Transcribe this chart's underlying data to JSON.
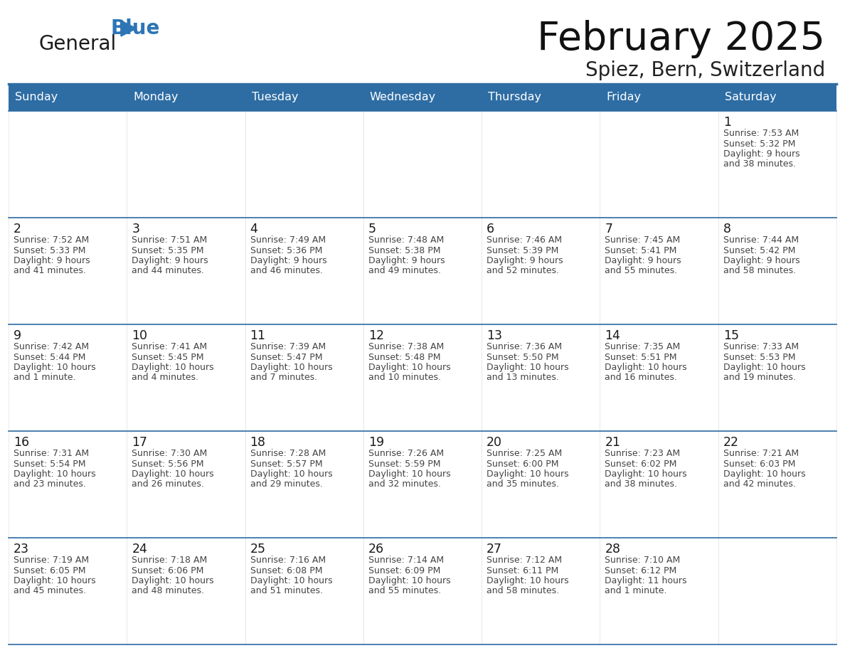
{
  "title": "February 2025",
  "subtitle": "Spiez, Bern, Switzerland",
  "header_bg": "#2E6DA4",
  "header_text": "#FFFFFF",
  "cell_bg": "#FFFFFF",
  "line_color": "#2E6DA4",
  "text_color": "#333333",
  "days_of_week": [
    "Sunday",
    "Monday",
    "Tuesday",
    "Wednesday",
    "Thursday",
    "Friday",
    "Saturday"
  ],
  "logo_general_color": "#1a1a1a",
  "logo_blue_color": "#2E75B6",
  "calendar_data": [
    [
      null,
      null,
      null,
      null,
      null,
      null,
      {
        "day": 1,
        "sunrise": "7:53 AM",
        "sunset": "5:32 PM",
        "daylight": "9 hours\nand 38 minutes."
      }
    ],
    [
      {
        "day": 2,
        "sunrise": "7:52 AM",
        "sunset": "5:33 PM",
        "daylight": "9 hours\nand 41 minutes."
      },
      {
        "day": 3,
        "sunrise": "7:51 AM",
        "sunset": "5:35 PM",
        "daylight": "9 hours\nand 44 minutes."
      },
      {
        "day": 4,
        "sunrise": "7:49 AM",
        "sunset": "5:36 PM",
        "daylight": "9 hours\nand 46 minutes."
      },
      {
        "day": 5,
        "sunrise": "7:48 AM",
        "sunset": "5:38 PM",
        "daylight": "9 hours\nand 49 minutes."
      },
      {
        "day": 6,
        "sunrise": "7:46 AM",
        "sunset": "5:39 PM",
        "daylight": "9 hours\nand 52 minutes."
      },
      {
        "day": 7,
        "sunrise": "7:45 AM",
        "sunset": "5:41 PM",
        "daylight": "9 hours\nand 55 minutes."
      },
      {
        "day": 8,
        "sunrise": "7:44 AM",
        "sunset": "5:42 PM",
        "daylight": "9 hours\nand 58 minutes."
      }
    ],
    [
      {
        "day": 9,
        "sunrise": "7:42 AM",
        "sunset": "5:44 PM",
        "daylight": "10 hours\nand 1 minute."
      },
      {
        "day": 10,
        "sunrise": "7:41 AM",
        "sunset": "5:45 PM",
        "daylight": "10 hours\nand 4 minutes."
      },
      {
        "day": 11,
        "sunrise": "7:39 AM",
        "sunset": "5:47 PM",
        "daylight": "10 hours\nand 7 minutes."
      },
      {
        "day": 12,
        "sunrise": "7:38 AM",
        "sunset": "5:48 PM",
        "daylight": "10 hours\nand 10 minutes."
      },
      {
        "day": 13,
        "sunrise": "7:36 AM",
        "sunset": "5:50 PM",
        "daylight": "10 hours\nand 13 minutes."
      },
      {
        "day": 14,
        "sunrise": "7:35 AM",
        "sunset": "5:51 PM",
        "daylight": "10 hours\nand 16 minutes."
      },
      {
        "day": 15,
        "sunrise": "7:33 AM",
        "sunset": "5:53 PM",
        "daylight": "10 hours\nand 19 minutes."
      }
    ],
    [
      {
        "day": 16,
        "sunrise": "7:31 AM",
        "sunset": "5:54 PM",
        "daylight": "10 hours\nand 23 minutes."
      },
      {
        "day": 17,
        "sunrise": "7:30 AM",
        "sunset": "5:56 PM",
        "daylight": "10 hours\nand 26 minutes."
      },
      {
        "day": 18,
        "sunrise": "7:28 AM",
        "sunset": "5:57 PM",
        "daylight": "10 hours\nand 29 minutes."
      },
      {
        "day": 19,
        "sunrise": "7:26 AM",
        "sunset": "5:59 PM",
        "daylight": "10 hours\nand 32 minutes."
      },
      {
        "day": 20,
        "sunrise": "7:25 AM",
        "sunset": "6:00 PM",
        "daylight": "10 hours\nand 35 minutes."
      },
      {
        "day": 21,
        "sunrise": "7:23 AM",
        "sunset": "6:02 PM",
        "daylight": "10 hours\nand 38 minutes."
      },
      {
        "day": 22,
        "sunrise": "7:21 AM",
        "sunset": "6:03 PM",
        "daylight": "10 hours\nand 42 minutes."
      }
    ],
    [
      {
        "day": 23,
        "sunrise": "7:19 AM",
        "sunset": "6:05 PM",
        "daylight": "10 hours\nand 45 minutes."
      },
      {
        "day": 24,
        "sunrise": "7:18 AM",
        "sunset": "6:06 PM",
        "daylight": "10 hours\nand 48 minutes."
      },
      {
        "day": 25,
        "sunrise": "7:16 AM",
        "sunset": "6:08 PM",
        "daylight": "10 hours\nand 51 minutes."
      },
      {
        "day": 26,
        "sunrise": "7:14 AM",
        "sunset": "6:09 PM",
        "daylight": "10 hours\nand 55 minutes."
      },
      {
        "day": 27,
        "sunrise": "7:12 AM",
        "sunset": "6:11 PM",
        "daylight": "10 hours\nand 58 minutes."
      },
      {
        "day": 28,
        "sunrise": "7:10 AM",
        "sunset": "6:12 PM",
        "daylight": "11 hours\nand 1 minute."
      },
      null
    ]
  ],
  "figsize": [
    11.88,
    9.18
  ],
  "dpi": 100
}
